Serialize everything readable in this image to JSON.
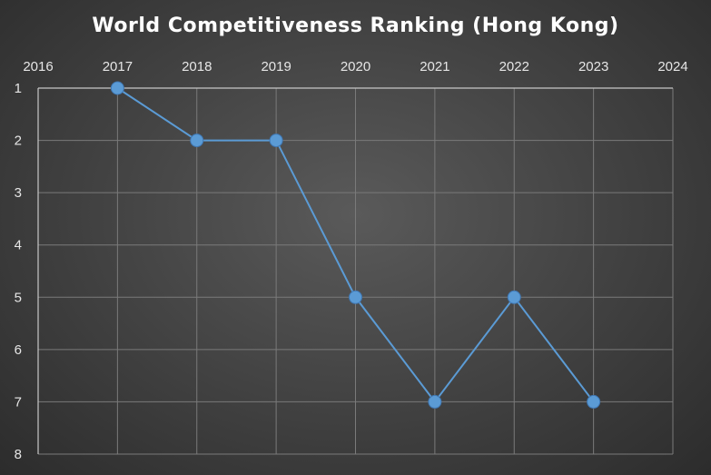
{
  "chart_data": {
    "type": "line",
    "title": "World Competitiveness Ranking (Hong Kong)",
    "xlabel": "",
    "ylabel": "",
    "x_axis_position": "top",
    "y_axis_reversed": true,
    "xlim": [
      2016,
      2024
    ],
    "ylim": [
      1,
      8
    ],
    "x_ticks": [
      "2016",
      "2017",
      "2018",
      "2019",
      "2020",
      "2021",
      "2022",
      "2023",
      "2024"
    ],
    "y_ticks": [
      "1",
      "2",
      "3",
      "4",
      "5",
      "6",
      "7",
      "8"
    ],
    "grid": true,
    "legend": "none",
    "series": [
      {
        "x": [
          2017,
          2018,
          2019,
          2020,
          2021,
          2022,
          2023
        ],
        "values": [
          1,
          2,
          2,
          5,
          7,
          5,
          7
        ],
        "color": "#5b9bd5"
      }
    ]
  }
}
